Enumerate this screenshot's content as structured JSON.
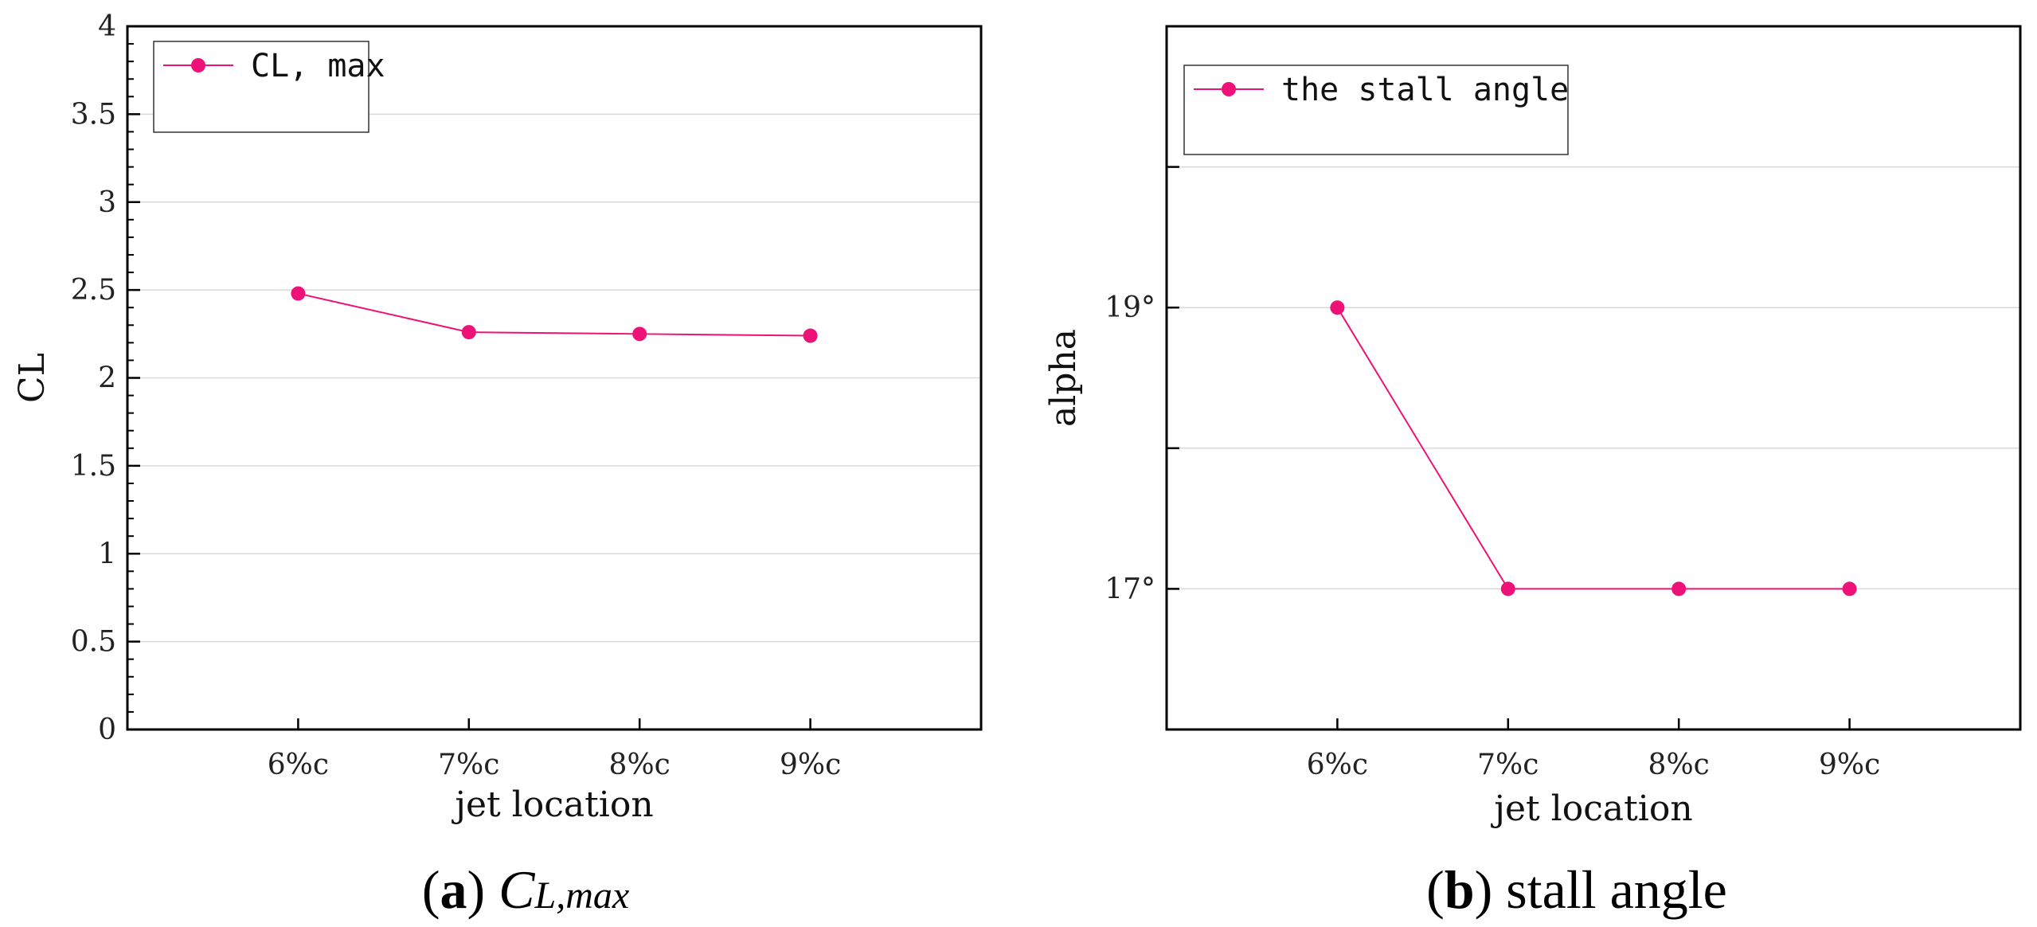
{
  "colors": {
    "series": "#ee1177",
    "axis": "#000000",
    "grid": "#d9d9d9",
    "legend_border": "#333333"
  },
  "chart_data": [
    {
      "type": "line",
      "title": "",
      "caption_letter": "a",
      "caption_main": "C",
      "caption_sub": "L,max",
      "xlabel": "jet location",
      "ylabel": "CL",
      "categories": [
        "6%c",
        "7%c",
        "8%c",
        "9%c"
      ],
      "x_slots": 5,
      "series": [
        {
          "name": "CL, max",
          "values": [
            2.48,
            2.26,
            2.25,
            2.24
          ]
        }
      ],
      "ylim": [
        0,
        4
      ],
      "major_ticks": [
        0,
        0.5,
        1,
        1.5,
        2,
        2.5,
        3,
        3.5,
        4
      ],
      "tick_labels": [
        "0",
        "0.5",
        "1",
        "1.5",
        "2",
        "2.5",
        "3",
        "3.5",
        "4"
      ],
      "minor_step": 0.1,
      "grid": true,
      "legend": "top-left"
    },
    {
      "type": "line",
      "title": "",
      "caption_letter": "b",
      "caption_text": "stall angle",
      "xlabel": "jet location",
      "ylabel": "alpha",
      "categories": [
        "6%c",
        "7%c",
        "8%c",
        "9%c"
      ],
      "x_slots": 5,
      "series": [
        {
          "name": "the stall angle",
          "values": [
            19,
            17,
            17,
            17
          ]
        }
      ],
      "ylim": [
        16,
        21
      ],
      "major_ticks": [
        16,
        17,
        18,
        19,
        20,
        21
      ],
      "tick_labels": [
        "",
        "17°",
        "",
        "19°",
        "",
        ""
      ],
      "minor_step": 0,
      "grid": true,
      "legend": "top-left"
    }
  ]
}
